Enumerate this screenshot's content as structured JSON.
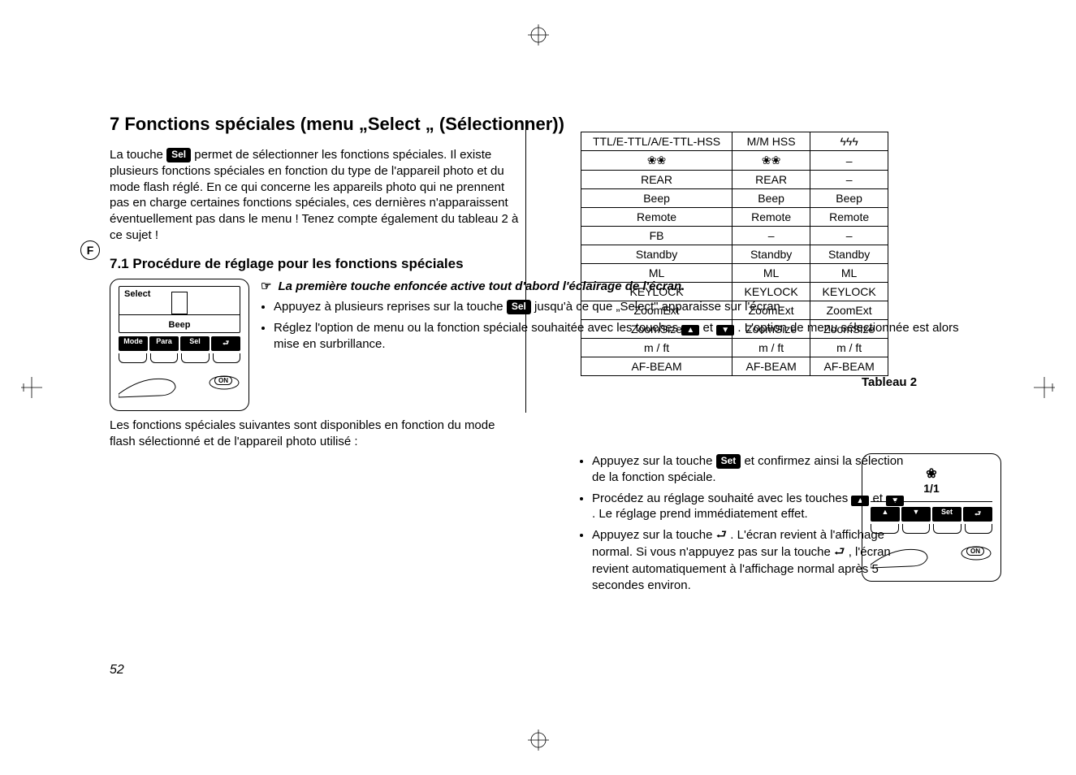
{
  "page_number": "52",
  "lang_badge": "F",
  "heading": "7 Fonctions spéciales (menu „Select „ (Sélectionner))",
  "intro_a": "La touche ",
  "intro_chip": "Sel",
  "intro_b": " permet de sélectionner les fonctions spéciales. Il existe plusieurs fonctions spéciales en fonction du type de l'appareil photo et du mode flash réglé. En ce qui concerne les appareils photo qui ne prennent pas en charge certaines fonctions spéciales, ces dernières n'apparaissent éventuellement pas dans le menu ! Tenez compte également du tableau 2 à ce sujet !",
  "subheading": "7.1 Procédure de réglage pour les fonctions spéciales",
  "lcd1": {
    "select": "Select",
    "beep": "Beep",
    "softkeys": [
      "Mode",
      "Para",
      "Sel",
      "⮐"
    ],
    "on": "ON"
  },
  "note_ptr": "☞",
  "note_text": "La première touche enfoncée active tout d'abord l'éclairage de l'écran.",
  "b1_a": "Appuyez à plusieurs reprises sur la touche ",
  "b1_chip": "Sel",
  "b1_b": " jusqu'à ce que „Select\" apparaisse sur l'écran.",
  "b2_a": "Réglez l'option de menu ou la fonction spéciale souhaitée avec les touches ",
  "b2_b": " et ",
  "b2_c": " . L'option de menu sélectionnée est alors mise en surbrillance.",
  "after": "Les fonctions spéciales suivantes sont disponibles en fonction du mode flash sélectionné et de l'appareil photo utilisé :",
  "table": {
    "rows": [
      [
        "TTL/E-TTL/A/E-TTL-HSS",
        "M/M HSS",
        "ϟϟϟ"
      ],
      [
        "❀❀",
        "❀❀",
        "–"
      ],
      [
        "REAR",
        "REAR",
        "–"
      ],
      [
        "Beep",
        "Beep",
        "Beep"
      ],
      [
        "Remote",
        "Remote",
        "Remote"
      ],
      [
        "FB",
        "–",
        "–"
      ],
      [
        "Standby",
        "Standby",
        "Standby"
      ],
      [
        "ML",
        "ML",
        "ML"
      ],
      [
        "KEYLOCK",
        "KEYLOCK",
        "KEYLOCK"
      ],
      [
        "ZoomExt",
        "ZoomExt",
        "ZoomExt"
      ],
      [
        "ZoomSize",
        "ZoomSize",
        "ZoomSize"
      ],
      [
        "m / ft",
        "m / ft",
        "m / ft"
      ],
      [
        "AF-BEAM",
        "AF-BEAM",
        "AF-BEAM"
      ]
    ]
  },
  "table_label": "Tableau 2",
  "r1_a": "Appuyez sur la touche ",
  "r1_chip": "Set",
  "r1_b": " et confirmez ainsi la sélection de la fonction spéciale.",
  "r2_a": "Procédez au réglage souhaité avec les touches ",
  "r2_b": " et ",
  "r2_c": ". Le réglage prend immédiatement effet.",
  "r3_a": "Appuyez sur la touche ",
  "r3_ret": "⮐",
  "r3_b": " . L'écran revient à l'affichage normal. Si vous n'appuyez pas sur la touche ",
  "r3_c": " , l'écran revient automatiquement à l'affichage normal après 5 secondes environ.",
  "lcd2": {
    "flower": "❀",
    "ratio": "1/1",
    "softkeys": [
      "▲",
      "▼",
      "Set",
      "⮐"
    ],
    "on": "ON"
  },
  "colors": {
    "text": "#000000",
    "bg": "#ffffff"
  }
}
